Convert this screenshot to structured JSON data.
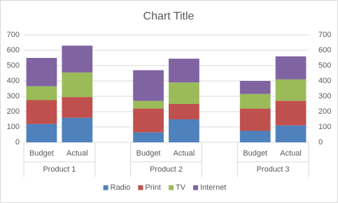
{
  "chart_data": {
    "type": "stacked-bar",
    "title": "Chart Title",
    "categories": [
      "Budget",
      "Actual",
      null,
      "Budget",
      "Actual",
      null,
      "Budget",
      "Actual"
    ],
    "groups": [
      "Product 1",
      "Product 2",
      "Product 3"
    ],
    "series": [
      {
        "name": "Radio",
        "color": "#4f81bd",
        "values": [
          120,
          160,
          null,
          65,
          150,
          null,
          75,
          110
        ]
      },
      {
        "name": "Print",
        "color": "#c0504d",
        "values": [
          155,
          135,
          null,
          155,
          100,
          null,
          145,
          160
        ]
      },
      {
        "name": "TV",
        "color": "#9bbb59",
        "values": [
          90,
          160,
          null,
          50,
          140,
          null,
          95,
          140
        ]
      },
      {
        "name": "Internet",
        "color": "#8064a2",
        "values": [
          185,
          175,
          null,
          200,
          155,
          null,
          85,
          150
        ]
      }
    ],
    "ylim": [
      0,
      700
    ],
    "yticks": [
      0,
      100,
      200,
      300,
      400,
      500,
      600,
      700
    ],
    "y2lim": [
      0,
      700
    ],
    "y2ticks": [
      0,
      100,
      200,
      300,
      400,
      500,
      600,
      700
    ],
    "grid": true,
    "legend": "bottom"
  }
}
